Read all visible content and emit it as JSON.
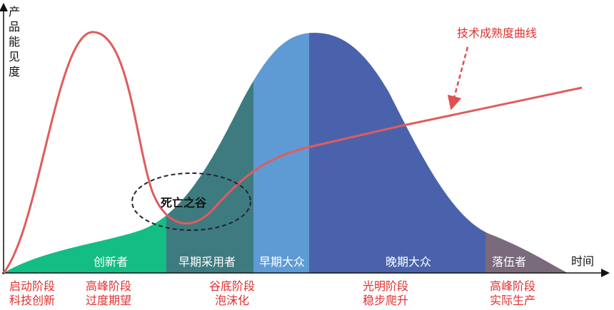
{
  "y_axis_label": "产品能见度",
  "x_axis_label": "时间",
  "curve_label": "技术成熟度曲线",
  "valley_label": "死亡之谷",
  "segments": [
    "创新者",
    "早期采用者",
    "早期大众",
    "晚期大众",
    "落伍者"
  ],
  "stages": [
    [
      "启动阶段",
      "科技创新"
    ],
    [
      "高峰阶段",
      "过度期望"
    ],
    [
      "谷底阶段",
      "泡沫化"
    ],
    [
      "光明阶段",
      "稳步爬升"
    ],
    [
      "高峰阶段",
      "实际生产"
    ]
  ]
}
